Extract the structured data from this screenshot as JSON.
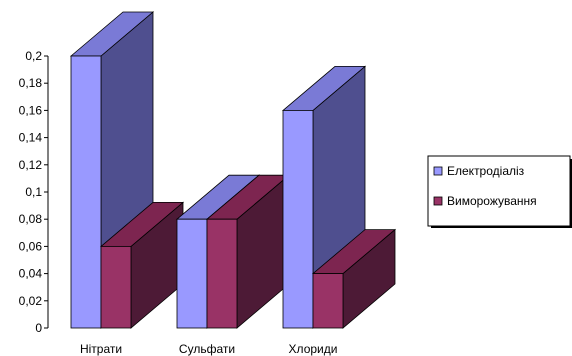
{
  "chart_data": {
    "type": "bar",
    "categories": [
      "Нітрати",
      "Сульфати",
      "Хлориди"
    ],
    "series": [
      {
        "name": "Електродіаліз",
        "values": [
          0.2,
          0.08,
          0.16
        ],
        "color": "#9999ff",
        "top_color": "#7a7ad6",
        "side_color": "#4f4f8f"
      },
      {
        "name": "Виморожування",
        "values": [
          0.06,
          0.08,
          0.04
        ],
        "color": "#993366",
        "top_color": "#7d2550",
        "side_color": "#4d1a36"
      }
    ],
    "ylim": [
      0,
      0.2
    ],
    "yticks": [
      "0",
      "0,02",
      "0,04",
      "0,06",
      "0,08",
      "0,1",
      "0,12",
      "0,14",
      "0,16",
      "0,18",
      "0,2"
    ],
    "title": "",
    "xlabel": "",
    "ylabel": "",
    "legend_position": "right",
    "grid": false
  }
}
